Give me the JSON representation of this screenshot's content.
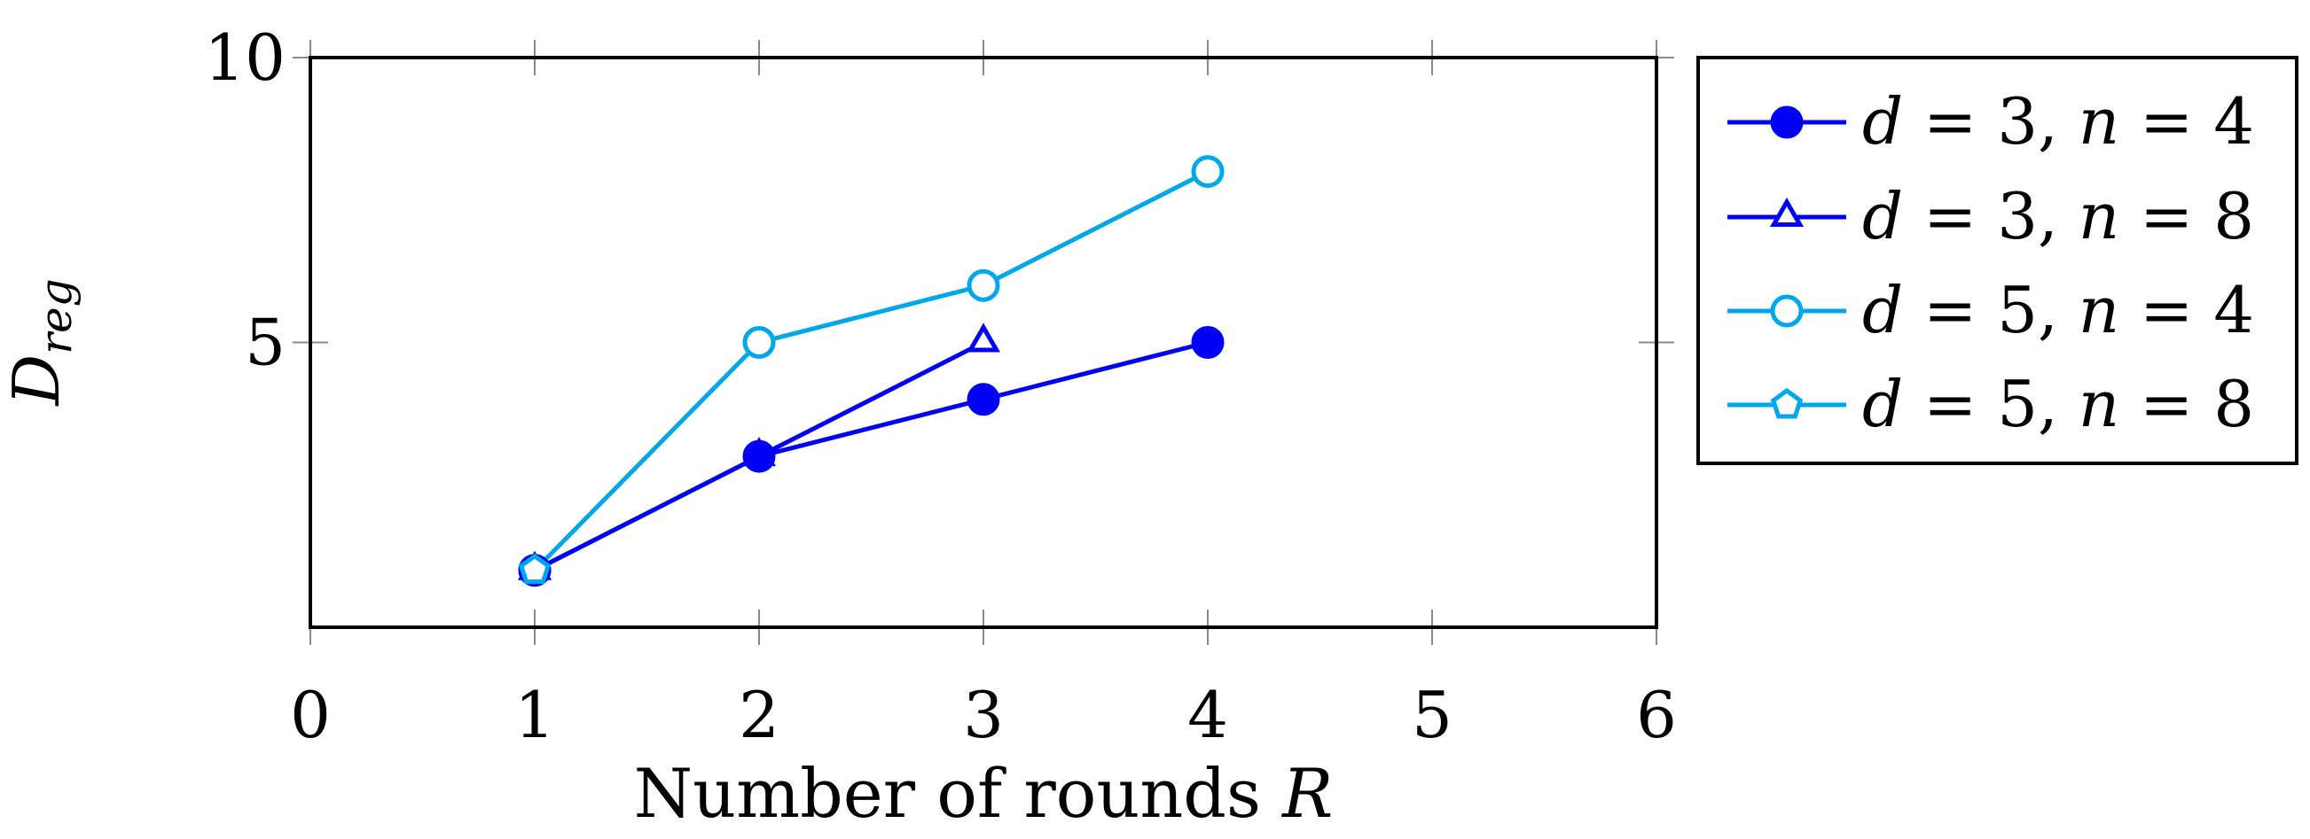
{
  "chart_data": {
    "type": "line",
    "xlabel": "Number of rounds R",
    "ylabel": "D_reg",
    "xlim": [
      0,
      6
    ],
    "ylim": [
      0,
      10
    ],
    "x_ticks": [
      "0",
      "1",
      "2",
      "3",
      "4",
      "5",
      "6"
    ],
    "y_ticks": [
      "5",
      "10"
    ],
    "grid": false,
    "legend_position": "outside-right",
    "series": [
      {
        "name": "d = 3, n = 4",
        "color": "#0000f5",
        "marker": "filled-circle",
        "x": [
          1,
          2,
          3,
          4
        ],
        "y": [
          1,
          3,
          4,
          5
        ]
      },
      {
        "name": "d = 3, n = 8",
        "color": "#0000f5",
        "marker": "open-triangle",
        "x": [
          1,
          2,
          3
        ],
        "y": [
          1,
          3,
          5
        ]
      },
      {
        "name": "d = 5, n = 4",
        "color": "#00a8ea",
        "marker": "open-circle",
        "x": [
          1,
          2,
          3,
          4
        ],
        "y": [
          1,
          5,
          6,
          8
        ]
      },
      {
        "name": "d = 5, n = 8",
        "color": "#00a8ea",
        "marker": "open-pentagon",
        "x": [
          1
        ],
        "y": [
          1
        ]
      }
    ]
  }
}
